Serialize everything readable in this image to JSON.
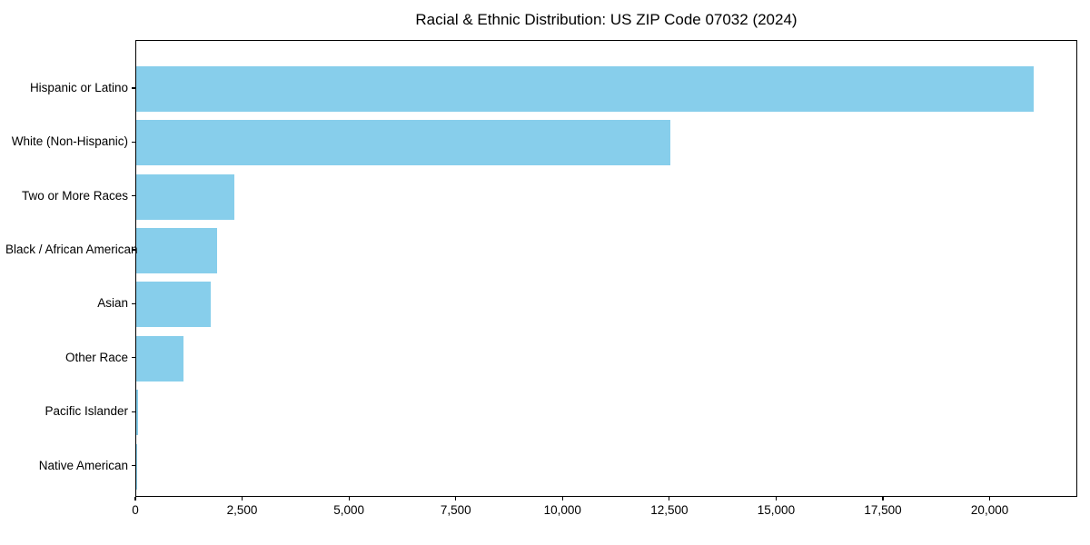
{
  "chart_data": {
    "type": "bar",
    "orientation": "horizontal",
    "title": "Racial & Ethnic Distribution: US ZIP Code 07032 (2024)",
    "categories": [
      "Hispanic or Latino",
      "White (Non-Hispanic)",
      "Two or More Races",
      "Black / African American",
      "Asian",
      "Other Race",
      "Pacific Islander",
      "Native American"
    ],
    "values": [
      21000,
      12500,
      2300,
      1900,
      1750,
      1100,
      40,
      10
    ],
    "xlabel": "",
    "ylabel": "",
    "xlim": [
      0,
      22050
    ],
    "xticks": [
      0,
      2500,
      5000,
      7500,
      10000,
      12500,
      15000,
      17500,
      20000
    ],
    "xtick_labels": [
      "0",
      "2,500",
      "5,000",
      "7,500",
      "10,000",
      "12,500",
      "15,000",
      "17,500",
      "20,000"
    ],
    "bar_color": "#87CEEB",
    "grid": false,
    "legend_position": "none",
    "colors": {
      "background": "#ffffff",
      "spine": "#000000",
      "text": "#000000"
    }
  }
}
